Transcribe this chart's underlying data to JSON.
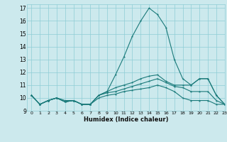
{
  "xlabel": "Humidex (Indice chaleur)",
  "ylabel": "",
  "background_color": "#cce9ed",
  "grid_color": "#8ecdd6",
  "line_color": "#1a7a7a",
  "xlim": [
    -0.5,
    23
  ],
  "ylim": [
    9,
    17.3
  ],
  "xticks": [
    0,
    1,
    2,
    3,
    4,
    5,
    6,
    7,
    8,
    9,
    10,
    11,
    12,
    13,
    14,
    15,
    16,
    17,
    18,
    19,
    20,
    21,
    22,
    23
  ],
  "yticks": [
    9,
    10,
    11,
    12,
    13,
    14,
    15,
    16,
    17
  ],
  "line1_x": [
    0,
    1,
    2,
    3,
    4,
    5,
    6,
    7,
    8,
    9,
    10,
    11,
    12,
    13,
    14,
    15,
    16,
    17,
    18,
    19,
    20,
    21,
    22,
    23
  ],
  "line1_y": [
    10.2,
    9.5,
    9.8,
    10.0,
    9.8,
    9.8,
    9.5,
    9.5,
    10.2,
    10.5,
    11.8,
    13.2,
    14.8,
    16.0,
    17.0,
    16.5,
    15.5,
    13.0,
    11.5,
    11.0,
    11.5,
    11.5,
    10.2,
    9.5
  ],
  "line2_x": [
    0,
    1,
    2,
    3,
    4,
    5,
    6,
    7,
    8,
    9,
    10,
    11,
    12,
    13,
    14,
    15,
    16,
    17,
    18,
    19,
    20,
    21,
    22,
    23
  ],
  "line2_y": [
    10.2,
    9.5,
    9.8,
    10.0,
    9.7,
    9.8,
    9.5,
    9.5,
    10.2,
    10.5,
    10.8,
    11.0,
    11.2,
    11.5,
    11.7,
    11.8,
    11.3,
    11.0,
    11.0,
    11.0,
    11.5,
    11.5,
    10.2,
    9.5
  ],
  "line3_x": [
    0,
    1,
    2,
    3,
    4,
    5,
    6,
    7,
    8,
    9,
    10,
    11,
    12,
    13,
    14,
    15,
    16,
    17,
    18,
    19,
    20,
    21,
    22,
    23
  ],
  "line3_y": [
    10.2,
    9.5,
    9.8,
    10.0,
    9.7,
    9.8,
    9.5,
    9.5,
    10.2,
    10.4,
    10.5,
    10.7,
    10.9,
    11.1,
    11.3,
    11.5,
    11.2,
    10.9,
    10.8,
    10.5,
    10.5,
    10.5,
    9.8,
    9.5
  ],
  "line4_x": [
    0,
    1,
    2,
    3,
    4,
    5,
    6,
    7,
    8,
    9,
    10,
    11,
    12,
    13,
    14,
    15,
    16,
    17,
    18,
    19,
    20,
    21,
    22,
    23
  ],
  "line4_y": [
    10.2,
    9.5,
    9.8,
    10.0,
    9.7,
    9.8,
    9.5,
    9.5,
    10.0,
    10.2,
    10.3,
    10.5,
    10.6,
    10.7,
    10.8,
    11.0,
    10.8,
    10.5,
    10.0,
    9.8,
    9.8,
    9.8,
    9.5,
    9.5
  ]
}
